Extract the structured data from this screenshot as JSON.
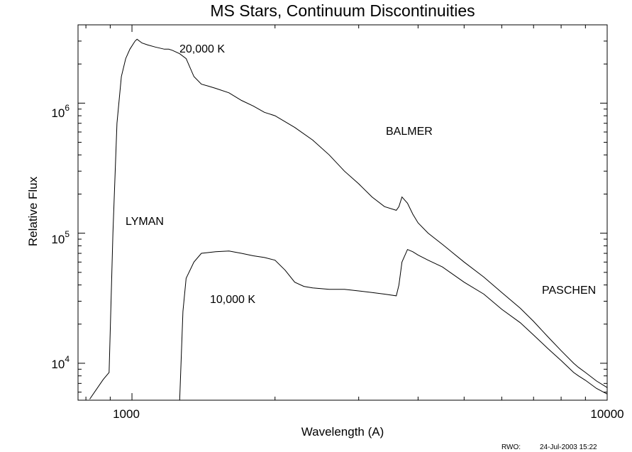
{
  "chart_data": {
    "type": "line",
    "title": "MS Stars, Continuum Discontinuities",
    "xlabel": "Wavelength (A)",
    "ylabel": "Relative Flux",
    "xscale": "log",
    "yscale": "log",
    "xlim": [
      770,
      10000
    ],
    "ylim": [
      5200,
      4000000
    ],
    "grid": false,
    "legend": "none",
    "line_color": "#000000",
    "x_tick_labels": [
      {
        "value": 1000,
        "label": "1000"
      },
      {
        "value": 10000,
        "label": "10000"
      }
    ],
    "y_tick_labels": [
      {
        "value": 10000,
        "base": "10",
        "exp": "4"
      },
      {
        "value": 100000,
        "base": "10",
        "exp": "5"
      },
      {
        "value": 1000000,
        "base": "10",
        "exp": "6"
      }
    ],
    "annotations": [
      {
        "text": "20,000 K",
        "x": 1290,
        "y": 3000000
      },
      {
        "text": "BALMER",
        "x": 4000,
        "y": 650000
      },
      {
        "text": "LYMAN",
        "x": 1100,
        "y": 130000
      },
      {
        "text": "10,000 K",
        "x": 1500,
        "y": 30000
      },
      {
        "text": "PASCHEN",
        "x": 9200,
        "y": 35000
      }
    ],
    "series": [
      {
        "x": [
          815,
          870,
          895,
          912,
          930,
          950,
          970,
          990,
          1015,
          1025,
          1050,
          1080,
          1120,
          1170,
          1180,
          1195,
          1215,
          1230,
          1260,
          1300,
          1350,
          1400,
          1450,
          1500,
          1600,
          1700,
          1800,
          1900,
          2000,
          2200,
          2400,
          2600,
          2800,
          3000,
          3200,
          3400,
          3600,
          3646,
          3700,
          3800,
          3900,
          4000,
          4200,
          4500,
          5000,
          5500,
          6000,
          6563,
          7000,
          7500,
          8000,
          8500,
          8700,
          9000,
          9500,
          10000
        ],
        "y": [
          5300,
          7500,
          8500,
          100000,
          700000,
          1600000,
          2200000,
          2600000,
          3000000,
          3100000,
          2900000,
          2800000,
          2700000,
          2600000,
          2600000,
          2600000,
          2550000,
          2500000,
          2400000,
          2200000,
          1600000,
          1400000,
          1350000,
          1300000,
          1200000,
          1050000,
          950000,
          850000,
          800000,
          650000,
          520000,
          400000,
          300000,
          240000,
          190000,
          160000,
          150000,
          160000,
          190000,
          170000,
          140000,
          120000,
          100000,
          82000,
          60000,
          46000,
          35000,
          26500,
          21000,
          16000,
          12500,
          10000,
          9300,
          8500,
          7300,
          6500
        ]
      },
      {
        "x": [
          1260,
          1280,
          1300,
          1350,
          1400,
          1500,
          1600,
          1700,
          1800,
          1900,
          2000,
          2100,
          2200,
          2300,
          2400,
          2600,
          2800,
          3000,
          3200,
          3400,
          3600,
          3646,
          3700,
          3800,
          3900,
          4000,
          4200,
          4500,
          5000,
          5500,
          6000,
          6563,
          7000,
          7500,
          8000,
          8500,
          8700,
          9000,
          9500,
          10000
        ],
        "y": [
          5200,
          25000,
          45000,
          60000,
          70000,
          72000,
          73000,
          70000,
          67000,
          65000,
          62000,
          52000,
          42000,
          39000,
          38000,
          37000,
          37000,
          36000,
          35000,
          34000,
          33000,
          40000,
          60000,
          75000,
          72000,
          68000,
          62000,
          55000,
          42000,
          34000,
          26000,
          20500,
          16500,
          13000,
          10500,
          8500,
          8000,
          7400,
          6400,
          5800
        ]
      }
    ]
  },
  "footer": {
    "author": "RWO:",
    "timestamp": "24-Jul-2003 15:22"
  }
}
